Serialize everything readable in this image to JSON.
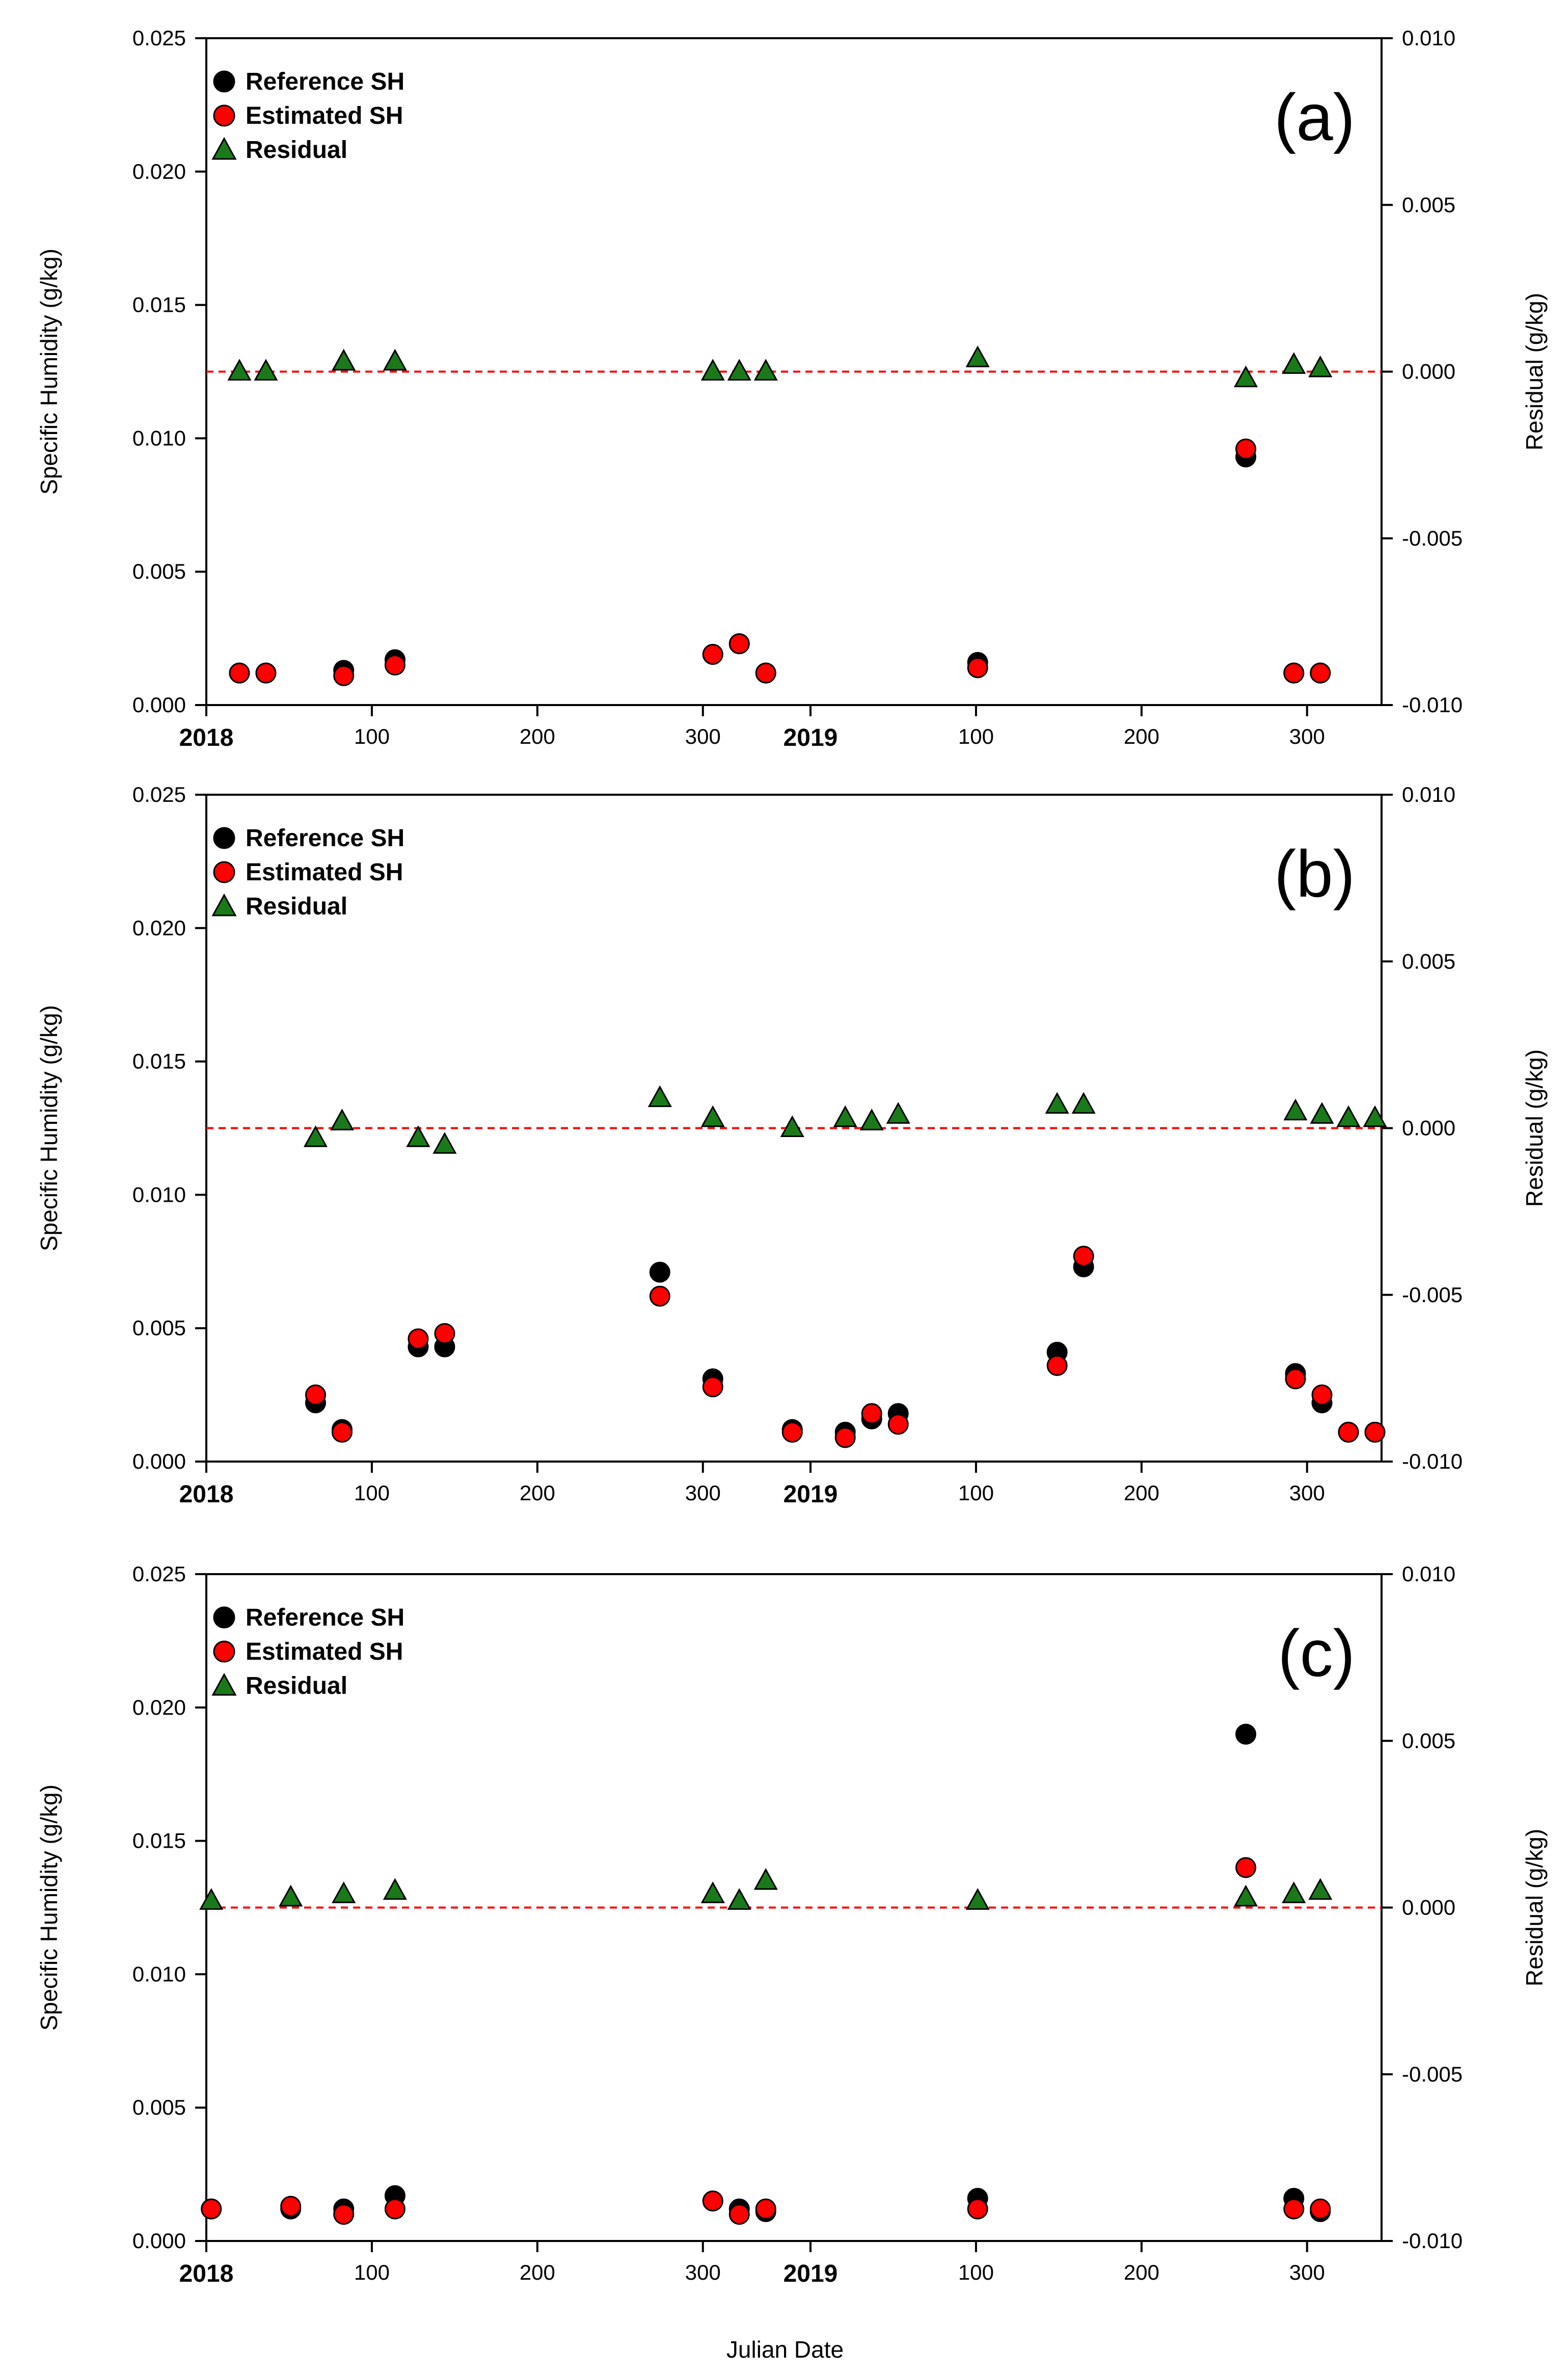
{
  "figure": {
    "xlabel": "Julian Date",
    "left_axis_label": "Specific Humidity (g/kg)",
    "right_axis_label": "Residual (g/kg)"
  },
  "colors": {
    "reference": "#000000",
    "estimated": "#ff0000",
    "residual": "#1a7a1a",
    "zero_line": "#ff0000"
  },
  "chart_data": [
    {
      "type": "scatter",
      "panel": "(a)",
      "title": "",
      "xlabel": "Julian Date",
      "ylabel": "Specific Humidity (g/kg)",
      "y2label": "Residual (g/kg)",
      "ylim": [
        0,
        0.025
      ],
      "y2lim": [
        -0.01,
        0.01
      ],
      "yticks": [
        "0.000",
        "0.005",
        "0.010",
        "0.015",
        "0.020",
        "0.025"
      ],
      "y2ticks": [
        "-0.010",
        "-0.005",
        "0.000",
        "0.005",
        "0.010"
      ],
      "xticks": [
        {
          "x": 0,
          "label": "2018",
          "bold": true
        },
        {
          "x": 100,
          "label": "100",
          "bold": false
        },
        {
          "x": 200,
          "label": "200",
          "bold": false
        },
        {
          "x": 300,
          "label": "300",
          "bold": false
        },
        {
          "x": 365,
          "label": "2019",
          "bold": true
        },
        {
          "x": 465,
          "label": "100",
          "bold": false
        },
        {
          "x": 565,
          "label": "200",
          "bold": false
        },
        {
          "x": 665,
          "label": "300",
          "bold": false
        }
      ],
      "xlim": [
        0,
        710
      ],
      "legend_position": "top-left",
      "legend": [
        "Reference SH",
        "Estimated SH",
        "Residual"
      ],
      "series": [
        {
          "name": "Reference SH",
          "axis": "left",
          "marker": "circle",
          "x": [
            20,
            36,
            83,
            114,
            306,
            322,
            338,
            466,
            628,
            657,
            673
          ],
          "y": [
            0.0012,
            0.0012,
            0.0013,
            0.0017,
            0.0019,
            0.0023,
            0.0012,
            0.0016,
            0.0093,
            0.0012,
            0.0012
          ]
        },
        {
          "name": "Estimated SH",
          "axis": "left",
          "marker": "circle",
          "x": [
            20,
            36,
            83,
            114,
            306,
            322,
            338,
            466,
            628,
            657,
            673
          ],
          "y": [
            0.0012,
            0.0012,
            0.0011,
            0.0015,
            0.0019,
            0.0023,
            0.0012,
            0.0014,
            0.0096,
            0.0012,
            0.0012
          ]
        },
        {
          "name": "Residual",
          "axis": "right",
          "marker": "triangle",
          "x": [
            20,
            36,
            83,
            114,
            306,
            322,
            338,
            466,
            628,
            657,
            673
          ],
          "y": [
            0.0,
            0.0,
            0.0003,
            0.0003,
            0.0,
            0.0,
            0.0,
            0.0004,
            -0.0002,
            0.0002,
            0.0001
          ]
        }
      ]
    },
    {
      "type": "scatter",
      "panel": "(b)",
      "title": "",
      "xlabel": "Julian Date",
      "ylabel": "Specific Humidity (g/kg)",
      "y2label": "Residual (g/kg)",
      "ylim": [
        0,
        0.025
      ],
      "y2lim": [
        -0.01,
        0.01
      ],
      "yticks": [
        "0.000",
        "0.005",
        "0.010",
        "0.015",
        "0.020",
        "0.025"
      ],
      "y2ticks": [
        "-0.010",
        "-0.005",
        "0.000",
        "0.005",
        "0.010"
      ],
      "xticks": [
        {
          "x": 0,
          "label": "2018",
          "bold": true
        },
        {
          "x": 100,
          "label": "100",
          "bold": false
        },
        {
          "x": 200,
          "label": "200",
          "bold": false
        },
        {
          "x": 300,
          "label": "300",
          "bold": false
        },
        {
          "x": 365,
          "label": "2019",
          "bold": true
        },
        {
          "x": 465,
          "label": "100",
          "bold": false
        },
        {
          "x": 565,
          "label": "200",
          "bold": false
        },
        {
          "x": 665,
          "label": "300",
          "bold": false
        }
      ],
      "xlim": [
        0,
        710
      ],
      "legend_position": "top-left",
      "legend": [
        "Reference SH",
        "Estimated SH",
        "Residual"
      ],
      "series": [
        {
          "name": "Reference SH",
          "axis": "left",
          "marker": "circle",
          "x": [
            66,
            82,
            128,
            144,
            274,
            306,
            354,
            386,
            402,
            418,
            514,
            530,
            658,
            674,
            690,
            706
          ],
          "y": [
            0.0022,
            0.0012,
            0.0043,
            0.0043,
            0.0071,
            0.0031,
            0.0012,
            0.0011,
            0.0016,
            0.0018,
            0.0041,
            0.0073,
            0.0033,
            0.0022,
            0.0011,
            0.0011
          ]
        },
        {
          "name": "Estimated SH",
          "axis": "left",
          "marker": "circle",
          "x": [
            66,
            82,
            128,
            144,
            274,
            306,
            354,
            386,
            402,
            418,
            514,
            530,
            658,
            674,
            690,
            706
          ],
          "y": [
            0.0025,
            0.0011,
            0.0046,
            0.0048,
            0.0062,
            0.0028,
            0.0011,
            0.0009,
            0.0018,
            0.0014,
            0.0036,
            0.0077,
            0.0031,
            0.0025,
            0.0011,
            0.0011
          ]
        },
        {
          "name": "Residual",
          "axis": "right",
          "marker": "triangle",
          "x": [
            66,
            82,
            128,
            144,
            274,
            306,
            354,
            386,
            402,
            418,
            514,
            530,
            658,
            674,
            690,
            706
          ],
          "y": [
            -0.0003,
            0.0002,
            -0.0003,
            -0.0005,
            0.0009,
            0.0003,
            0.0,
            0.0003,
            0.0002,
            0.0004,
            0.0007,
            0.0007,
            0.0005,
            0.0004,
            0.0003,
            0.0003
          ]
        }
      ]
    },
    {
      "type": "scatter",
      "panel": "(c)",
      "title": "",
      "xlabel": "Julian Date",
      "ylabel": "Specific Humidity (g/kg)",
      "y2label": "Residual (g/kg)",
      "ylim": [
        0,
        0.025
      ],
      "y2lim": [
        -0.01,
        0.01
      ],
      "yticks": [
        "0.000",
        "0.005",
        "0.010",
        "0.015",
        "0.020",
        "0.025"
      ],
      "y2ticks": [
        "-0.010",
        "-0.005",
        "0.000",
        "0.005",
        "0.010"
      ],
      "xticks": [
        {
          "x": 0,
          "label": "2018",
          "bold": true
        },
        {
          "x": 100,
          "label": "100",
          "bold": false
        },
        {
          "x": 200,
          "label": "200",
          "bold": false
        },
        {
          "x": 300,
          "label": "300",
          "bold": false
        },
        {
          "x": 365,
          "label": "2019",
          "bold": true
        },
        {
          "x": 465,
          "label": "100",
          "bold": false
        },
        {
          "x": 565,
          "label": "200",
          "bold": false
        },
        {
          "x": 665,
          "label": "300",
          "bold": false
        }
      ],
      "xlim": [
        0,
        710
      ],
      "legend_position": "top-left",
      "legend": [
        "Reference SH",
        "Estimated SH",
        "Residual"
      ],
      "series": [
        {
          "name": "Reference SH",
          "axis": "left",
          "marker": "circle",
          "x": [
            3,
            51,
            83,
            114,
            306,
            322,
            338,
            466,
            628,
            657,
            673
          ],
          "y": [
            0.0012,
            0.0012,
            0.0012,
            0.0017,
            0.0015,
            0.0012,
            0.0011,
            0.0016,
            0.019,
            0.0016,
            0.0011
          ]
        },
        {
          "name": "Estimated SH",
          "axis": "left",
          "marker": "circle",
          "x": [
            3,
            51,
            83,
            114,
            306,
            322,
            338,
            466,
            628,
            657,
            673
          ],
          "y": [
            0.0012,
            0.0013,
            0.001,
            0.0012,
            0.0015,
            0.001,
            0.0012,
            0.0012,
            0.014,
            0.0012,
            0.0012
          ]
        },
        {
          "name": "Residual",
          "axis": "right",
          "marker": "triangle",
          "x": [
            3,
            51,
            83,
            114,
            306,
            322,
            338,
            466,
            628,
            657,
            673
          ],
          "y": [
            0.0002,
            0.0003,
            0.0004,
            0.0005,
            0.0004,
            0.0002,
            0.0008,
            0.0002,
            0.0003,
            0.0004,
            0.0005
          ]
        }
      ]
    }
  ]
}
